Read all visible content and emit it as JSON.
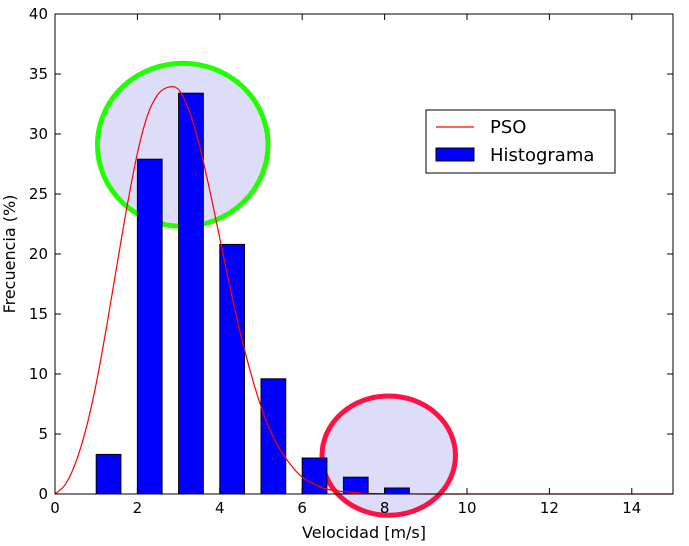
{
  "chart_data": {
    "type": "bar",
    "title": "",
    "xlabel": "Velocidad [m/s]",
    "ylabel": "Frecuencia (%)",
    "xlim": [
      0,
      15
    ],
    "ylim": [
      0,
      40
    ],
    "xticks": [
      0,
      2,
      4,
      6,
      8,
      10,
      12,
      14
    ],
    "yticks": [
      0,
      5,
      10,
      15,
      20,
      25,
      30,
      35,
      40
    ],
    "grid": false,
    "legend_position": "upper-right",
    "bar_width": 0.6,
    "histogram": {
      "name": "Histograma",
      "color": "#0000ff",
      "x": [
        1.3,
        2.3,
        3.3,
        4.3,
        5.3,
        6.3,
        7.3,
        8.3
      ],
      "values": [
        3.3,
        27.9,
        33.4,
        20.8,
        9.6,
        3.0,
        1.4,
        0.5
      ]
    },
    "curve": {
      "name": "PSO",
      "color": "#ff0000",
      "type": "line",
      "x": [
        0,
        0.25,
        0.5,
        0.75,
        1.0,
        1.25,
        1.5,
        1.75,
        2.0,
        2.25,
        2.5,
        2.75,
        3.0,
        3.25,
        3.5,
        3.75,
        4.0,
        4.25,
        4.5,
        4.75,
        5.0,
        5.25,
        5.5,
        5.75,
        6.0,
        6.25,
        6.5,
        6.75,
        7.0,
        7.5,
        8.0,
        9.0,
        10.0,
        12.0,
        15.0
      ],
      "y": [
        0,
        0.8,
        2.6,
        5.4,
        9.2,
        13.9,
        19.0,
        24.0,
        28.4,
        31.6,
        33.3,
        33.9,
        33.7,
        32.0,
        29.1,
        25.4,
        21.3,
        17.2,
        13.4,
        10.1,
        7.3,
        5.1,
        3.5,
        2.3,
        1.4,
        0.9,
        0.5,
        0.3,
        0.2,
        0.06,
        0.02,
        0,
        0,
        0,
        0
      ]
    },
    "annotations": [
      {
        "type": "ellipse",
        "name": "green-circle",
        "stroke": "#22ff00",
        "fill": "#ddddfa",
        "cx": 3.1,
        "cy": 29.1,
        "rx": 2.07,
        "ry": 6.8
      },
      {
        "type": "ellipse",
        "name": "red-circle",
        "stroke": "#ff1144",
        "fill": "#ddddfa",
        "cx": 8.1,
        "cy": 3.2,
        "rx": 1.62,
        "ry": 4.97
      }
    ]
  }
}
